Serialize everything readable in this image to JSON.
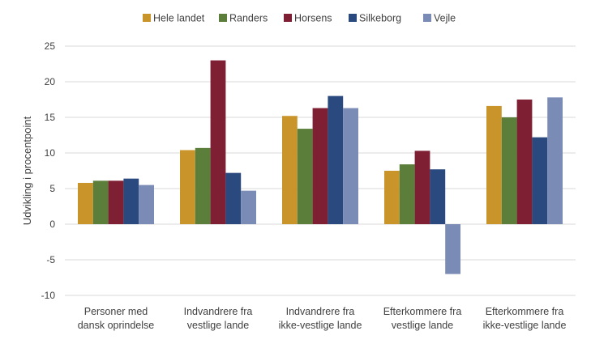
{
  "chart_data": {
    "type": "bar",
    "title": "",
    "xlabel": "",
    "ylabel": "Udvikling i procentpoint",
    "ylim": [
      -10,
      25
    ],
    "yticks": [
      -10,
      -5,
      0,
      5,
      10,
      15,
      20,
      25
    ],
    "grid": true,
    "legend_position": "top",
    "categories": [
      [
        "Personer med",
        "dansk oprindelse"
      ],
      [
        "Indvandrere fra",
        "vestlige lande"
      ],
      [
        "Indvandrere fra",
        "ikke-vestlige lande"
      ],
      [
        "Efterkommere fra",
        "vestlige lande"
      ],
      [
        "Efterkommere fra",
        "ikke-vestlige lande"
      ]
    ],
    "series": [
      {
        "name": "Hele landet",
        "color": "#C9952A",
        "values": [
          5.8,
          10.4,
          15.2,
          7.5,
          16.6
        ]
      },
      {
        "name": "Randers",
        "color": "#5B7F3A",
        "values": [
          6.1,
          10.7,
          13.4,
          8.4,
          15.0
        ]
      },
      {
        "name": "Horsens",
        "color": "#7F1F33",
        "values": [
          6.1,
          23.0,
          16.3,
          10.3,
          17.5
        ]
      },
      {
        "name": "Silkeborg",
        "color": "#2A4A7F",
        "values": [
          6.4,
          7.2,
          18.0,
          7.7,
          12.2
        ]
      },
      {
        "name": "Vejle",
        "color": "#7A8BB5",
        "values": [
          5.5,
          4.7,
          16.3,
          -7.0,
          17.8
        ]
      }
    ]
  }
}
